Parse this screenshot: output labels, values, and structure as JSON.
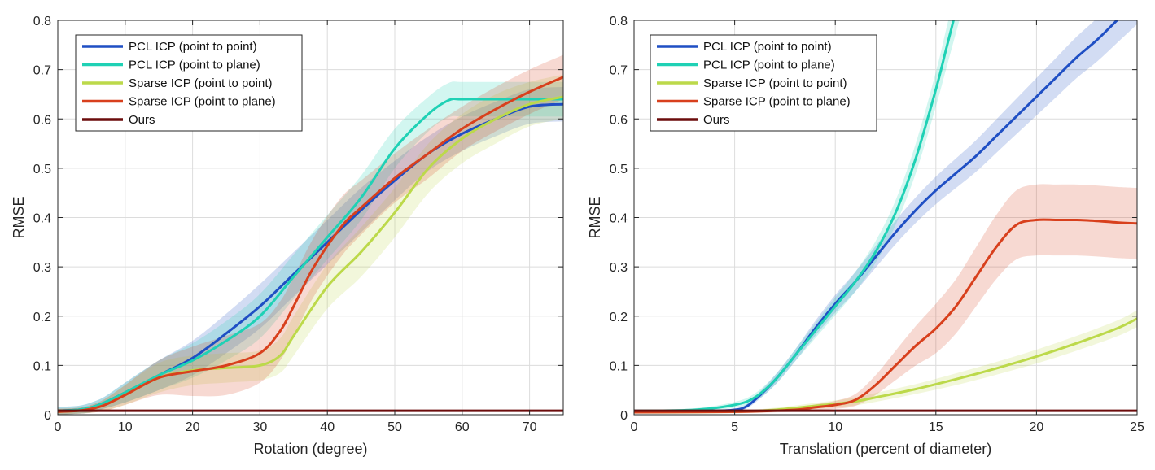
{
  "chart_data": [
    {
      "type": "line",
      "xlabel": "Rotation (degree)",
      "ylabel": "RMSE",
      "xlim": [
        0,
        75
      ],
      "ylim": [
        0,
        0.8
      ],
      "xticks": [
        0,
        10,
        20,
        30,
        40,
        50,
        60,
        70
      ],
      "yticks": [
        0,
        0.1,
        0.2,
        0.3,
        0.4,
        0.5,
        0.6,
        0.7,
        0.8
      ],
      "grid": true,
      "legend_position": "top-left",
      "series": [
        {
          "name": "PCL ICP (point to point)",
          "color": "#1f4fc4",
          "x": [
            0,
            3,
            5,
            7,
            10,
            15,
            20,
            25,
            30,
            35,
            40,
            45,
            50,
            55,
            60,
            65,
            70,
            75
          ],
          "y": [
            0.008,
            0.01,
            0.015,
            0.025,
            0.045,
            0.08,
            0.115,
            0.165,
            0.22,
            0.285,
            0.35,
            0.415,
            0.475,
            0.53,
            0.57,
            0.6,
            0.625,
            0.63
          ],
          "band": [
            0.008,
            0.008,
            0.01,
            0.012,
            0.02,
            0.03,
            0.035,
            0.04,
            0.045,
            0.045,
            0.045,
            0.045,
            0.04,
            0.035,
            0.035,
            0.035,
            0.035,
            0.035
          ]
        },
        {
          "name": "PCL ICP (point to plane)",
          "color": "#1fd1b5",
          "x": [
            0,
            3,
            5,
            7,
            10,
            15,
            20,
            25,
            30,
            35,
            40,
            45,
            50,
            55,
            58,
            60,
            65,
            70,
            75
          ],
          "y": [
            0.008,
            0.01,
            0.015,
            0.025,
            0.045,
            0.08,
            0.11,
            0.15,
            0.2,
            0.28,
            0.36,
            0.44,
            0.54,
            0.61,
            0.638,
            0.64,
            0.64,
            0.64,
            0.64
          ],
          "band": [
            0.008,
            0.008,
            0.01,
            0.012,
            0.02,
            0.03,
            0.035,
            0.04,
            0.045,
            0.045,
            0.045,
            0.045,
            0.04,
            0.035,
            0.035,
            0.035,
            0.035,
            0.035,
            0.035
          ]
        },
        {
          "name": "Sparse ICP (point to point)",
          "color": "#bcd94a",
          "x": [
            0,
            3,
            5,
            7,
            10,
            15,
            20,
            25,
            30,
            33,
            35,
            40,
            45,
            50,
            55,
            60,
            65,
            70,
            75
          ],
          "y": [
            0.006,
            0.008,
            0.012,
            0.02,
            0.04,
            0.075,
            0.09,
            0.095,
            0.1,
            0.12,
            0.16,
            0.26,
            0.33,
            0.41,
            0.5,
            0.56,
            0.6,
            0.63,
            0.645
          ],
          "band": [
            0.006,
            0.006,
            0.008,
            0.012,
            0.02,
            0.03,
            0.03,
            0.03,
            0.03,
            0.035,
            0.04,
            0.045,
            0.05,
            0.05,
            0.05,
            0.05,
            0.05,
            0.045,
            0.045
          ]
        },
        {
          "name": "Sparse ICP (point to plane)",
          "color": "#d8401d",
          "x": [
            0,
            3,
            5,
            7,
            10,
            15,
            20,
            25,
            30,
            33,
            35,
            38,
            42,
            45,
            50,
            55,
            60,
            65,
            70,
            75
          ],
          "y": [
            0.006,
            0.008,
            0.012,
            0.02,
            0.04,
            0.075,
            0.088,
            0.1,
            0.125,
            0.17,
            0.22,
            0.3,
            0.38,
            0.42,
            0.48,
            0.53,
            0.58,
            0.62,
            0.655,
            0.685
          ],
          "band": [
            0.006,
            0.006,
            0.008,
            0.012,
            0.02,
            0.035,
            0.05,
            0.06,
            0.06,
            0.06,
            0.06,
            0.06,
            0.06,
            0.055,
            0.05,
            0.05,
            0.045,
            0.045,
            0.045,
            0.045
          ]
        },
        {
          "name": "Ours",
          "color": "#6b0c0c",
          "x": [
            0,
            75
          ],
          "y": [
            0.008,
            0.008
          ],
          "band": [
            0.002,
            0.002
          ]
        }
      ]
    },
    {
      "type": "line",
      "xlabel": "Translation (percent of diameter)",
      "ylabel": "RMSE",
      "xlim": [
        0,
        25
      ],
      "ylim": [
        0,
        0.8
      ],
      "xticks": [
        0,
        5,
        10,
        15,
        20,
        25
      ],
      "yticks": [
        0,
        0.1,
        0.2,
        0.3,
        0.4,
        0.5,
        0.6,
        0.7,
        0.8
      ],
      "grid": true,
      "legend_position": "top-left",
      "series": [
        {
          "name": "PCL ICP (point to point)",
          "color": "#1f4fc4",
          "x": [
            0,
            4,
            5,
            5.5,
            6,
            7,
            8,
            9,
            10,
            11,
            12,
            13,
            14,
            15,
            16,
            17,
            18,
            19,
            20,
            21,
            22,
            23,
            24,
            25
          ],
          "y": [
            0.008,
            0.008,
            0.01,
            0.015,
            0.03,
            0.07,
            0.12,
            0.175,
            0.225,
            0.27,
            0.32,
            0.37,
            0.415,
            0.455,
            0.49,
            0.525,
            0.565,
            0.605,
            0.645,
            0.685,
            0.725,
            0.76,
            0.8,
            0.84
          ],
          "band": [
            0.002,
            0.002,
            0.003,
            0.004,
            0.006,
            0.01,
            0.012,
            0.015,
            0.018,
            0.02,
            0.022,
            0.024,
            0.026,
            0.028,
            0.03,
            0.032,
            0.034,
            0.036,
            0.038,
            0.04,
            0.042,
            0.044,
            0.046,
            0.048
          ]
        },
        {
          "name": "PCL ICP (point to plane)",
          "color": "#1fd1b5",
          "x": [
            0,
            3,
            5,
            6,
            7,
            8,
            9,
            10,
            11,
            12,
            13,
            14,
            15,
            15.5,
            16,
            16.5
          ],
          "y": [
            0.008,
            0.01,
            0.02,
            0.035,
            0.07,
            0.12,
            0.17,
            0.22,
            0.27,
            0.33,
            0.41,
            0.52,
            0.66,
            0.74,
            0.82,
            0.9
          ],
          "band": [
            0.002,
            0.003,
            0.006,
            0.008,
            0.01,
            0.012,
            0.015,
            0.018,
            0.02,
            0.022,
            0.025,
            0.03,
            0.035,
            0.04,
            0.045,
            0.05
          ]
        },
        {
          "name": "Sparse ICP (point to point)",
          "color": "#bcd94a",
          "x": [
            0,
            5,
            7,
            9,
            10,
            11,
            12,
            14,
            16,
            18,
            20,
            22,
            24,
            25
          ],
          "y": [
            0.005,
            0.006,
            0.01,
            0.018,
            0.022,
            0.027,
            0.035,
            0.052,
            0.072,
            0.094,
            0.118,
            0.145,
            0.175,
            0.195
          ],
          "band": [
            0.003,
            0.003,
            0.004,
            0.006,
            0.007,
            0.008,
            0.009,
            0.01,
            0.012,
            0.013,
            0.014,
            0.015,
            0.016,
            0.017
          ]
        },
        {
          "name": "Sparse ICP (point to plane)",
          "color": "#d8401d",
          "x": [
            0,
            5,
            8,
            9,
            10,
            11,
            12,
            13,
            14,
            15,
            16,
            17,
            18,
            19,
            20,
            21,
            22,
            23,
            24,
            25
          ],
          "y": [
            0.005,
            0.006,
            0.01,
            0.015,
            0.02,
            0.03,
            0.06,
            0.1,
            0.14,
            0.175,
            0.22,
            0.28,
            0.34,
            0.385,
            0.395,
            0.395,
            0.395,
            0.393,
            0.39,
            0.388
          ],
          "band": [
            0.002,
            0.003,
            0.004,
            0.006,
            0.008,
            0.012,
            0.02,
            0.03,
            0.04,
            0.05,
            0.055,
            0.06,
            0.065,
            0.07,
            0.072,
            0.072,
            0.072,
            0.072,
            0.072,
            0.072
          ]
        },
        {
          "name": "Ours",
          "color": "#6b0c0c",
          "x": [
            0,
            25
          ],
          "y": [
            0.008,
            0.008
          ],
          "band": [
            0.002,
            0.002
          ]
        }
      ]
    }
  ]
}
